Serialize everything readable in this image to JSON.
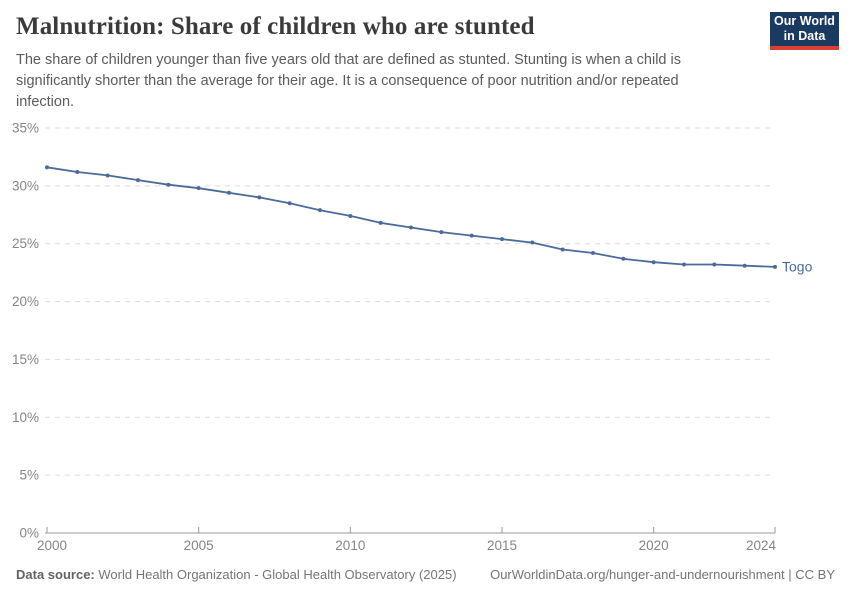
{
  "header": {
    "title": "Malnutrition: Share of children who are stunted",
    "subtitle": "The share of children younger than five years old that are defined as stunted. Stunting is when a child is significantly shorter than the average for their age. It is a consequence of poor nutrition and/or repeated infection.",
    "logo": {
      "line1": "Our World",
      "line2": "in Data"
    }
  },
  "footer": {
    "datasource_label": "Data source:",
    "datasource_value": "World Health Organization - Global Health Observatory (2025)",
    "attribution": "OurWorldinData.org/hunger-and-undernourishment | CC BY"
  },
  "colors": {
    "line": "#4c6a9c",
    "end_label": "#4c6a9c",
    "grid": "#dcdcdc",
    "axis": "#9a9a9a",
    "tick_text": "#858585",
    "logo_bg": "#1a3a5f",
    "logo_accent": "#dc3e31"
  },
  "chart_data": {
    "type": "line",
    "title": "Malnutrition: Share of children who are stunted",
    "xlabel": "",
    "ylabel": "",
    "grid": "horizontal-dashed",
    "legend_position": "end-of-line",
    "xlim": [
      2000,
      2024
    ],
    "ylim": [
      0,
      35
    ],
    "x_ticks": [
      2000,
      2005,
      2010,
      2015,
      2020,
      2024
    ],
    "y_ticks": [
      0,
      5,
      10,
      15,
      20,
      25,
      30,
      35
    ],
    "y_tick_suffix": "%",
    "series": [
      {
        "name": "Togo",
        "x": [
          2000,
          2001,
          2002,
          2003,
          2004,
          2005,
          2006,
          2007,
          2008,
          2009,
          2010,
          2011,
          2012,
          2013,
          2014,
          2015,
          2016,
          2017,
          2018,
          2019,
          2020,
          2021,
          2022,
          2023,
          2024
        ],
        "values": [
          31.6,
          31.2,
          30.9,
          30.5,
          30.1,
          29.8,
          29.4,
          29.0,
          28.5,
          27.9,
          27.4,
          26.8,
          26.4,
          26.0,
          25.7,
          25.4,
          25.1,
          24.5,
          24.2,
          23.7,
          23.4,
          23.2,
          23.2,
          23.1,
          23.0
        ]
      }
    ]
  }
}
